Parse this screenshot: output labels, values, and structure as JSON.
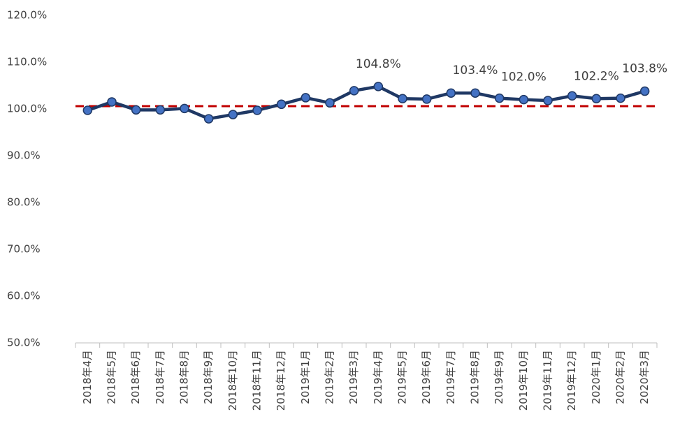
{
  "chart_data": {
    "type": "line",
    "categories": [
      "2018年4月",
      "2018年5月",
      "2018年6月",
      "2018年7月",
      "2018年8月",
      "2018年9月",
      "2018年10月",
      "2018年11月",
      "2018年12月",
      "2019年1月",
      "2019年2月",
      "2019年3月",
      "2019年4月",
      "2019年5月",
      "2019年6月",
      "2019年7月",
      "2019年8月",
      "2019年9月",
      "2019年10月",
      "2019年11月",
      "2019年12月",
      "2020年1月",
      "2020年2月",
      "2020年3月"
    ],
    "series": [
      {
        "color": "#1f3864",
        "marker_color": "#4472c4",
        "values": [
          99.7,
          101.5,
          99.8,
          99.8,
          100.1,
          97.9,
          98.8,
          99.7,
          101.0,
          102.4,
          101.3,
          103.9,
          104.8,
          102.2,
          102.1,
          103.4,
          103.4,
          102.3,
          102.0,
          101.8,
          102.8,
          102.2,
          102.3,
          103.8
        ],
        "value_labels": [
          null,
          null,
          null,
          null,
          null,
          null,
          null,
          null,
          null,
          null,
          null,
          null,
          "104.8%",
          null,
          null,
          null,
          "103.4%",
          null,
          "102.0%",
          null,
          null,
          "102.2%",
          null,
          "103.8%"
        ]
      }
    ],
    "reference_line": {
      "value": 100.6,
      "color": "#c00000"
    },
    "ylim": [
      50,
      120
    ],
    "yticks": [
      {
        "value": 50,
        "label": "50.0%"
      },
      {
        "value": 60,
        "label": "60.0%"
      },
      {
        "value": 70,
        "label": "70.0%"
      },
      {
        "value": 80,
        "label": "80.0%"
      },
      {
        "value": 90,
        "label": "90.0%"
      },
      {
        "value": 100,
        "label": "100.0%"
      },
      {
        "value": 110,
        "label": "110.0%"
      },
      {
        "value": 120,
        "label": "120.0%"
      }
    ],
    "grid": false
  }
}
